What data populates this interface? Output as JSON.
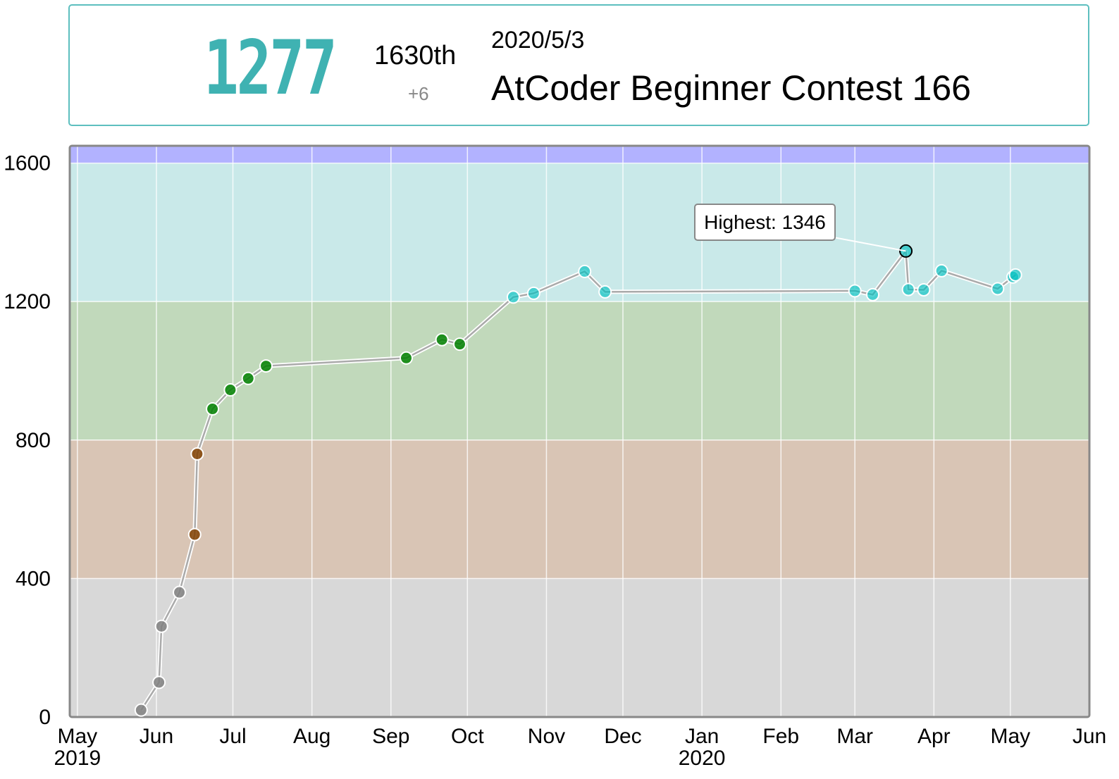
{
  "status": {
    "rating": "1277",
    "rank": "1630th",
    "diff": "+6",
    "date": "2020/5/3",
    "contest": "AtCoder Beginner Contest 166"
  },
  "colors": {
    "accent": "#3fb2b2",
    "border": "#5dbfbf"
  },
  "chart_data": {
    "type": "line",
    "ylim": [
      0,
      1650
    ],
    "yticks": [
      0,
      400,
      800,
      1200,
      1600
    ],
    "xlim": [
      "2019-04-28",
      "2020-06-01"
    ],
    "xticks": [
      {
        "date": "2019-05-01",
        "label": "May",
        "sub": "2019"
      },
      {
        "date": "2019-06-01",
        "label": "Jun",
        "sub": ""
      },
      {
        "date": "2019-07-01",
        "label": "Jul",
        "sub": ""
      },
      {
        "date": "2019-08-01",
        "label": "Aug",
        "sub": ""
      },
      {
        "date": "2019-09-01",
        "label": "Sep",
        "sub": ""
      },
      {
        "date": "2019-10-01",
        "label": "Oct",
        "sub": ""
      },
      {
        "date": "2019-11-01",
        "label": "Nov",
        "sub": ""
      },
      {
        "date": "2019-12-01",
        "label": "Dec",
        "sub": ""
      },
      {
        "date": "2020-01-01",
        "label": "Jan",
        "sub": "2020"
      },
      {
        "date": "2020-02-01",
        "label": "Feb",
        "sub": ""
      },
      {
        "date": "2020-03-01",
        "label": "Mar",
        "sub": ""
      },
      {
        "date": "2020-04-01",
        "label": "Apr",
        "sub": ""
      },
      {
        "date": "2020-05-01",
        "label": "May",
        "sub": ""
      },
      {
        "date": "2020-06-01",
        "label": "Jun",
        "sub": ""
      }
    ],
    "bands": [
      {
        "from": 0,
        "to": 400,
        "color": "#d8d8d8"
      },
      {
        "from": 400,
        "to": 800,
        "color": "#d9c5b5"
      },
      {
        "from": 800,
        "to": 1200,
        "color": "#c1d9bb"
      },
      {
        "from": 1200,
        "to": 1600,
        "color": "#c9e9e9"
      },
      {
        "from": 1600,
        "to": 1650,
        "color": "#b2b2ff"
      }
    ],
    "points": [
      {
        "x": "2019-05-26",
        "y": 20
      },
      {
        "x": "2019-06-02",
        "y": 100
      },
      {
        "x": "2019-06-03",
        "y": 262
      },
      {
        "x": "2019-06-10",
        "y": 360
      },
      {
        "x": "2019-06-16",
        "y": 527
      },
      {
        "x": "2019-06-17",
        "y": 760
      },
      {
        "x": "2019-06-23",
        "y": 890
      },
      {
        "x": "2019-06-30",
        "y": 945
      },
      {
        "x": "2019-07-07",
        "y": 978
      },
      {
        "x": "2019-07-14",
        "y": 1014
      },
      {
        "x": "2019-09-07",
        "y": 1037
      },
      {
        "x": "2019-09-21",
        "y": 1090
      },
      {
        "x": "2019-09-28",
        "y": 1077
      },
      {
        "x": "2019-10-19",
        "y": 1213
      },
      {
        "x": "2019-10-27",
        "y": 1224
      },
      {
        "x": "2019-11-16",
        "y": 1287
      },
      {
        "x": "2019-11-24",
        "y": 1228
      },
      {
        "x": "2020-03-01",
        "y": 1231
      },
      {
        "x": "2020-03-08",
        "y": 1220
      },
      {
        "x": "2020-03-21",
        "y": 1346
      },
      {
        "x": "2020-03-22",
        "y": 1235
      },
      {
        "x": "2020-03-28",
        "y": 1234
      },
      {
        "x": "2020-04-04",
        "y": 1289
      },
      {
        "x": "2020-04-26",
        "y": 1237
      },
      {
        "x": "2020-05-02",
        "y": 1271
      },
      {
        "x": "2020-05-03",
        "y": 1277
      }
    ],
    "highlight_index": 19,
    "annotation": "Highest: 1346"
  }
}
